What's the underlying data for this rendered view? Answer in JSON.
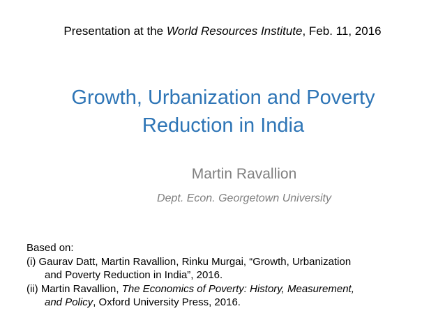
{
  "header": {
    "prefix": "Presentation at the ",
    "venue": "World Resources Institute",
    "suffix": ", Feb. 11, 2016"
  },
  "title": {
    "line1": "Growth, Urbanization and Poverty",
    "line2": "Reduction in India"
  },
  "author": {
    "name": "Martin Ravallion",
    "affiliation": "Dept. Econ. Georgetown University"
  },
  "references": {
    "intro": "Based on:",
    "ref1": {
      "line1": "(i) Gaurav Datt, Martin Ravallion, Rinku Murgai, “Growth, Urbanization",
      "line2": "and Poverty Reduction in India”, 2016."
    },
    "ref2": {
      "line1_prefix": "(ii) Martin Ravallion, ",
      "line1_italic": "The Economics of Poverty: History, Measurement,",
      "line2_italic": "and Policy",
      "line2_suffix": ", Oxford University Press, 2016."
    }
  },
  "colors": {
    "title": "#2E75B6",
    "subtitle": "#7F7F7F",
    "body": "#000000"
  }
}
